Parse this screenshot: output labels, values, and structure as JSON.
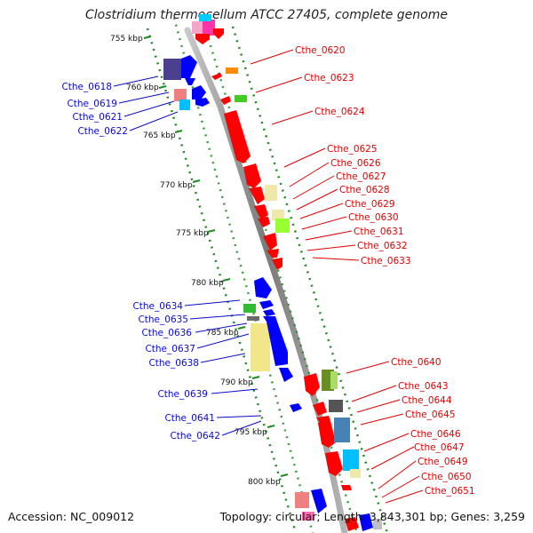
{
  "title": "Clostridium thermocellum ATCC 27405, complete genome",
  "footer": {
    "accession": "Accession: NC_009012",
    "topology": "Topology: circular",
    "length": "Length: 3,843,301 bp",
    "genes": "Genes: 3,259"
  },
  "ticks": [
    {
      "label": "755 kbp"
    },
    {
      "label": "760 kbp"
    },
    {
      "label": "765 kbp"
    },
    {
      "label": "770 kbp"
    },
    {
      "label": "775 kbp"
    },
    {
      "label": "780 kbp"
    },
    {
      "label": "785 kbp"
    },
    {
      "label": "790 kbp"
    },
    {
      "label": "795 kbp"
    },
    {
      "label": "800 kbp"
    }
  ],
  "genes_left": [
    "Cthe_0618",
    "Cthe_0619",
    "Cthe_0621",
    "Cthe_0622",
    "Cthe_0634",
    "Cthe_0635",
    "Cthe_0636",
    "Cthe_0637",
    "Cthe_0638",
    "Cthe_0639",
    "Cthe_0641",
    "Cthe_0642"
  ],
  "genes_right": [
    "Cthe_0620",
    "Cthe_0623",
    "Cthe_0624",
    "Cthe_0625",
    "Cthe_0626",
    "Cthe_0627",
    "Cthe_0628",
    "Cthe_0629",
    "Cthe_0630",
    "Cthe_0631",
    "Cthe_0632",
    "Cthe_0633",
    "Cthe_0640",
    "Cthe_0643",
    "Cthe_0644",
    "Cthe_0645",
    "Cthe_0646",
    "Cthe_0647",
    "Cthe_0649",
    "Cthe_0650",
    "Cthe_0651"
  ],
  "colors": {
    "reverse_label": "#0b0bc8",
    "forward_label": "#e00000",
    "backbone": "#8c8c8c",
    "tick_dots": "#1f8a1f"
  }
}
